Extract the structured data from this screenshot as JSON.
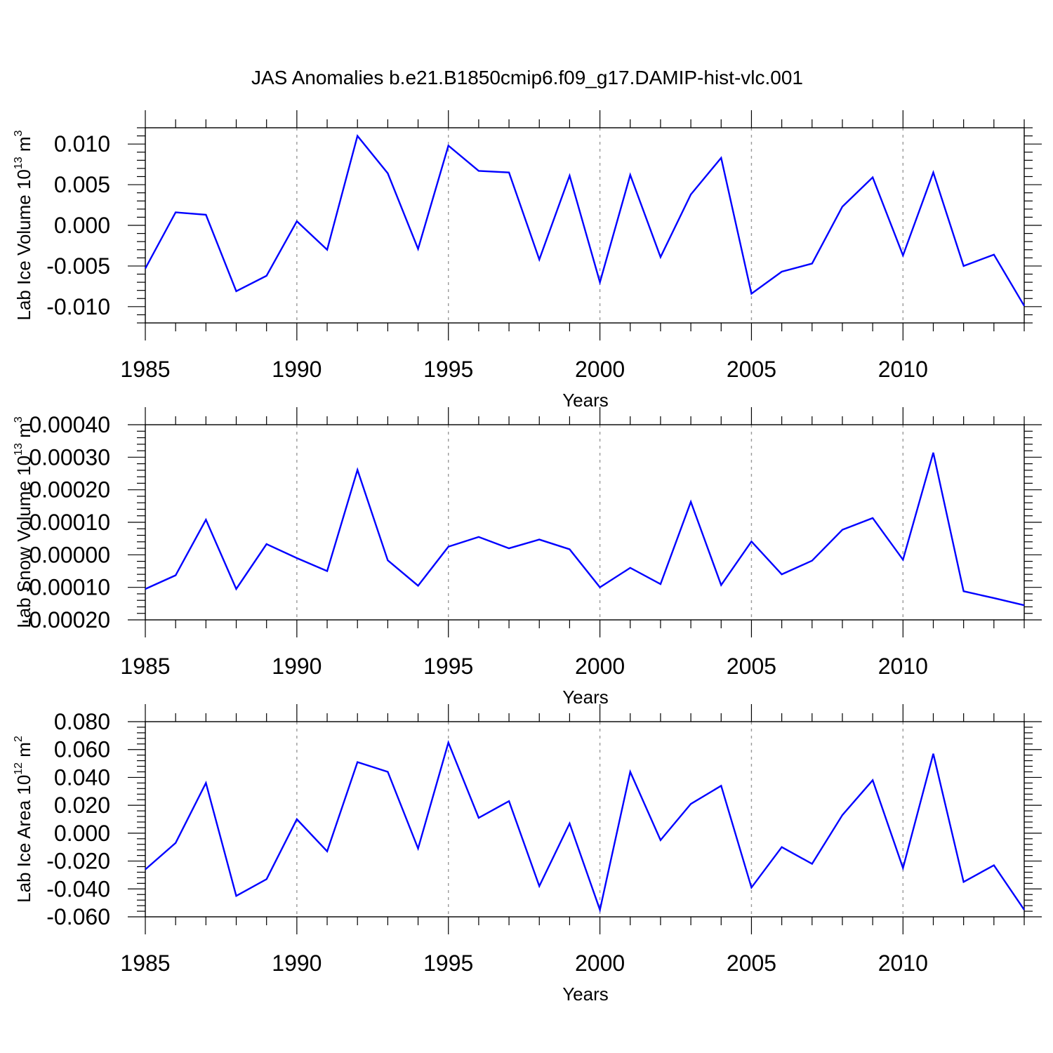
{
  "title": "JAS Anomalies b.e21.B1850cmip6.f09_g17.DAMIP-hist-vlc.001",
  "chart_data": [
    {
      "type": "line",
      "ylabel": "Lab Ice Volume 10",
      "ylabel_exp": "13",
      "ylabel_unit": " m",
      "ylabel_unit_exp": "3",
      "xlabel": "Years",
      "xlim": [
        1985,
        2014
      ],
      "ylim": [
        -0.012,
        0.012
      ],
      "yticks": [
        0.01,
        0.005,
        0.0,
        -0.005,
        -0.01
      ],
      "ytick_labels": [
        "0.010",
        "0.005",
        "0.000",
        "-0.005",
        "-0.010"
      ],
      "xticks": [
        1985,
        1990,
        1995,
        2000,
        2005,
        2010
      ],
      "xtick_labels": [
        "1985",
        "1990",
        "1995",
        "2000",
        "2005",
        "2010"
      ],
      "x": [
        1985,
        1986,
        1987,
        1988,
        1989,
        1990,
        1991,
        1992,
        1993,
        1994,
        1995,
        1996,
        1997,
        1998,
        1999,
        2000,
        2001,
        2002,
        2003,
        2004,
        2005,
        2006,
        2007,
        2008,
        2009,
        2010,
        2011,
        2012,
        2013,
        2014
      ],
      "series": [
        {
          "color": "#0000ff",
          "values": [
            -0.0053,
            0.0016,
            0.0013,
            -0.0081,
            -0.0062,
            0.0005,
            -0.003,
            0.011,
            0.0064,
            -0.0029,
            0.0098,
            0.0067,
            0.0065,
            -0.0042,
            0.0061,
            -0.007,
            0.0062,
            -0.0039,
            0.0038,
            0.0083,
            -0.0084,
            -0.0057,
            -0.0047,
            0.0023,
            0.0059,
            -0.0037,
            0.0065,
            -0.005,
            -0.0036,
            -0.0099
          ]
        }
      ],
      "grid": "vertical dashed at major x ticks"
    },
    {
      "type": "line",
      "ylabel": "Lab Snow Volume 10",
      "ylabel_exp": "13",
      "ylabel_unit": " m",
      "ylabel_unit_exp": "3",
      "xlabel": "Years",
      "xlim": [
        1985,
        2014
      ],
      "ylim": [
        -0.0002,
        0.0004
      ],
      "yticks": [
        0.0004,
        0.0003,
        0.0002,
        0.0001,
        0.0,
        -0.0001,
        -0.0002
      ],
      "ytick_labels": [
        "0.00040",
        "0.00030",
        "0.00020",
        "0.00010",
        "0.00000",
        "-0.00010",
        "-0.00020"
      ],
      "xticks": [
        1985,
        1990,
        1995,
        2000,
        2005,
        2010
      ],
      "xtick_labels": [
        "1985",
        "1990",
        "1995",
        "2000",
        "2005",
        "2010"
      ],
      "x": [
        1985,
        1986,
        1987,
        1988,
        1989,
        1990,
        1991,
        1992,
        1993,
        1994,
        1995,
        1996,
        1997,
        1998,
        1999,
        2000,
        2001,
        2002,
        2003,
        2004,
        2005,
        2006,
        2007,
        2008,
        2009,
        2010,
        2011,
        2012,
        2013,
        2014
      ],
      "series": [
        {
          "color": "#0000ff",
          "values": [
            -0.000105,
            -6.3e-05,
            0.000108,
            -0.000105,
            3.3e-05,
            -1e-05,
            -5e-05,
            0.000261,
            -1.7e-05,
            -9.5e-05,
            2.5e-05,
            5.5e-05,
            2e-05,
            4.7e-05,
            1.7e-05,
            -0.0001,
            -4e-05,
            -9e-05,
            0.000163,
            -9.3e-05,
            4.1e-05,
            -6e-05,
            -1.8e-05,
            7.7e-05,
            0.000113,
            -1.5e-05,
            0.000314,
            -0.000112,
            -0.000133,
            -0.000155
          ]
        }
      ],
      "grid": "vertical dashed at major x ticks"
    },
    {
      "type": "line",
      "ylabel": "Lab Ice Area 10",
      "ylabel_exp": "12",
      "ylabel_unit": " m",
      "ylabel_unit_exp": "2",
      "xlabel": "Years",
      "xlim": [
        1985,
        2014
      ],
      "ylim": [
        -0.06,
        0.08
      ],
      "yticks": [
        0.08,
        0.06,
        0.04,
        0.02,
        0.0,
        -0.02,
        -0.04,
        -0.06
      ],
      "ytick_labels": [
        "0.080",
        "0.060",
        "0.040",
        "0.020",
        "0.000",
        "-0.020",
        "-0.040",
        "-0.060"
      ],
      "xticks": [
        1985,
        1990,
        1995,
        2000,
        2005,
        2010
      ],
      "xtick_labels": [
        "1985",
        "1990",
        "1995",
        "2000",
        "2005",
        "2010"
      ],
      "x": [
        1985,
        1986,
        1987,
        1988,
        1989,
        1990,
        1991,
        1992,
        1993,
        1994,
        1995,
        1996,
        1997,
        1998,
        1999,
        2000,
        2001,
        2002,
        2003,
        2004,
        2005,
        2006,
        2007,
        2008,
        2009,
        2010,
        2011,
        2012,
        2013,
        2014
      ],
      "series": [
        {
          "color": "#0000ff",
          "values": [
            -0.026,
            -0.007,
            0.036,
            -0.045,
            -0.033,
            0.01,
            -0.013,
            0.051,
            0.044,
            -0.011,
            0.065,
            0.011,
            0.023,
            -0.038,
            0.007,
            -0.055,
            0.044,
            -0.005,
            0.021,
            0.034,
            -0.039,
            -0.01,
            -0.022,
            0.013,
            0.038,
            -0.025,
            0.057,
            -0.035,
            -0.023,
            -0.055
          ]
        }
      ],
      "grid": "vertical dashed at major x ticks"
    }
  ]
}
